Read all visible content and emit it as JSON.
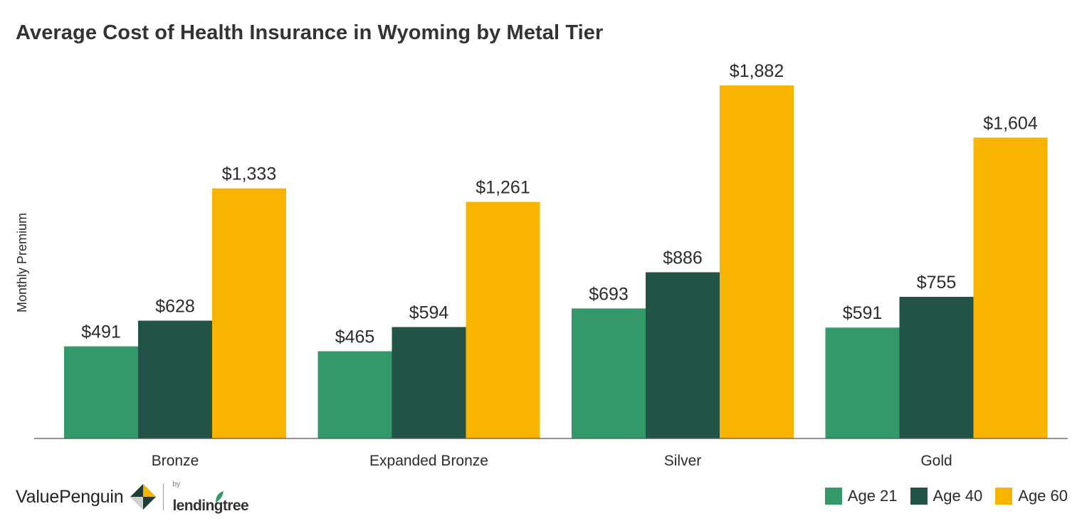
{
  "title": "Average Cost of Health Insurance in Wyoming by Metal Tier",
  "colors": {
    "age21": "#34996a",
    "age40": "#215446",
    "age60": "#f8b400",
    "axis": "#555555",
    "text": "#2b2b2b"
  },
  "chart_data": {
    "type": "bar",
    "title": "Average Cost of Health Insurance in Wyoming by Metal Tier",
    "xlabel": "",
    "ylabel": "Monthly Premium",
    "ylim": [
      0,
      1882
    ],
    "grid": false,
    "legend_position": "bottom-right",
    "categories": [
      "Bronze",
      "Expanded Bronze",
      "Silver",
      "Gold"
    ],
    "series": [
      {
        "name": "Age 21",
        "color": "#34996a",
        "values": [
          491,
          465,
          693,
          591
        ],
        "labels": [
          "$491",
          "$465",
          "$693",
          "$591"
        ]
      },
      {
        "name": "Age 40",
        "color": "#215446",
        "values": [
          628,
          594,
          886,
          755
        ],
        "labels": [
          "$628",
          "$594",
          "$886",
          "$755"
        ]
      },
      {
        "name": "Age 60",
        "color": "#f8b400",
        "values": [
          1333,
          1261,
          1882,
          1604
        ],
        "labels": [
          "$1,333",
          "$1,261",
          "$1,882",
          "$1,604"
        ]
      }
    ]
  },
  "branding": {
    "valuepenguin": "ValuePenguin",
    "by": "by",
    "lendingtree": "lendingtree"
  },
  "legend": {
    "items": [
      {
        "label": "Age 21",
        "color": "#34996a"
      },
      {
        "label": "Age 40",
        "color": "#215446"
      },
      {
        "label": "Age 60",
        "color": "#f8b400"
      }
    ]
  }
}
